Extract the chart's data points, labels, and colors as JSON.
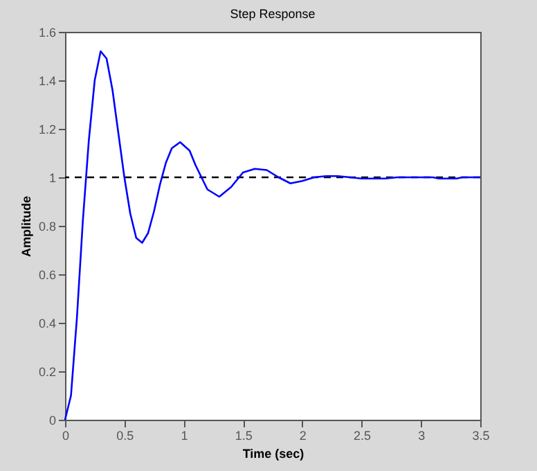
{
  "chart_data": {
    "type": "line",
    "title": "Step Response",
    "xlabel": "Time (sec)",
    "ylabel": "Amplitude",
    "x": [
      0,
      0.05,
      0.1,
      0.15,
      0.2,
      0.25,
      0.3,
      0.35,
      0.4,
      0.45,
      0.5,
      0.55,
      0.6,
      0.65,
      0.7,
      0.75,
      0.8,
      0.85,
      0.9,
      0.97,
      1.05,
      1.1,
      1.15,
      1.2,
      1.3,
      1.4,
      1.5,
      1.6,
      1.7,
      1.8,
      1.9,
      2.0,
      2.1,
      2.2,
      2.3,
      2.4,
      2.5,
      2.7,
      2.8,
      3.1,
      3.15,
      3.3,
      3.35,
      3.5
    ],
    "series": [
      {
        "color": "#0000ff",
        "values": [
          0,
          0.1,
          0.42,
          0.82,
          1.15,
          1.4,
          1.52,
          1.49,
          1.36,
          1.18,
          1.0,
          0.85,
          0.75,
          0.73,
          0.77,
          0.86,
          0.97,
          1.06,
          1.12,
          1.145,
          1.11,
          1.05,
          1.0,
          0.95,
          0.92,
          0.96,
          1.02,
          1.035,
          1.03,
          1.0,
          0.975,
          0.985,
          1.0,
          1.005,
          1.005,
          1.0,
          0.995,
          0.995,
          1.0,
          1.0,
          0.995,
          0.995,
          1.0,
          1.0
        ]
      }
    ],
    "xlim": [
      0,
      3.5
    ],
    "xticks": [
      0,
      0.5,
      1,
      1.5,
      2,
      2.5,
      3,
      3.5
    ],
    "ylim": [
      0,
      1.6
    ],
    "yticks": [
      0,
      0.2,
      0.4,
      0.6,
      0.8,
      1,
      1.2,
      1.4,
      1.6
    ],
    "ref_lines": [
      {
        "axis": "y",
        "value": 1,
        "color": "#000000",
        "line_style": "dashed"
      }
    ],
    "grid": false,
    "line_style": "solid",
    "marker": "none"
  }
}
